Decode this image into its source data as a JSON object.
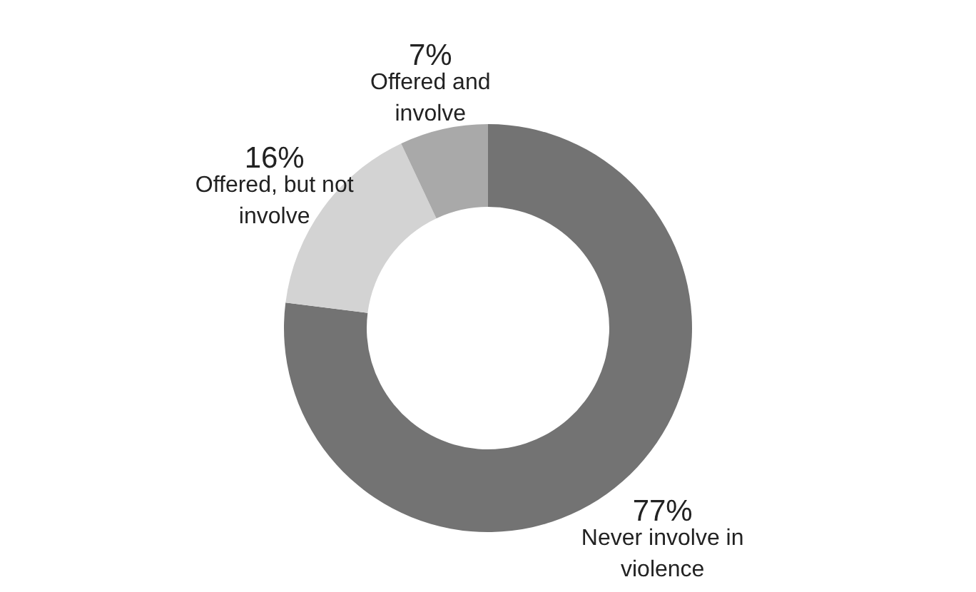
{
  "chart_data": {
    "type": "donut",
    "categories": [
      "Never involve in violence",
      "Offered, but not involve",
      "Offered and involve"
    ],
    "values": [
      77,
      16,
      7
    ],
    "colors": [
      "#737373",
      "#d3d3d3",
      "#a9a9a9"
    ],
    "value_labels": [
      "77%",
      "16%",
      "7%"
    ]
  }
}
